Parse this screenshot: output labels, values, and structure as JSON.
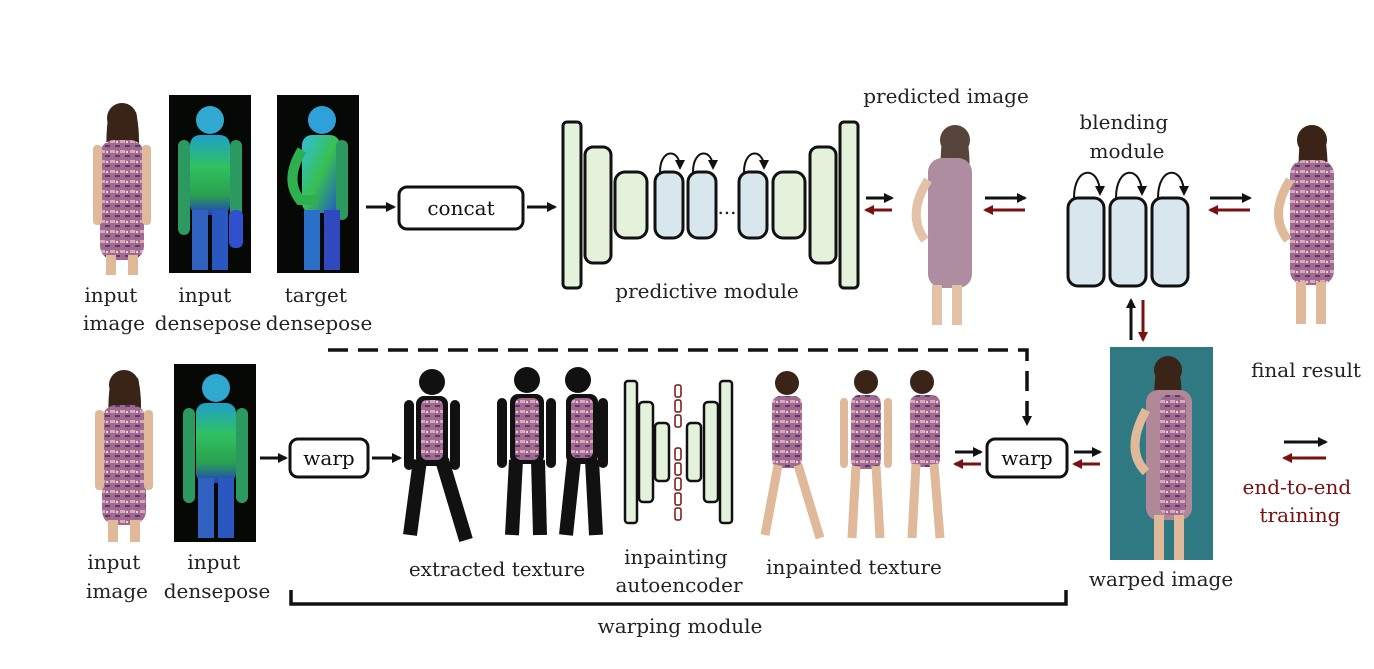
{
  "labels": {
    "input_image_top": [
      "input",
      "image"
    ],
    "input_densepose_top": [
      "input",
      "densepose"
    ],
    "target_densepose": [
      "target",
      "densepose"
    ],
    "concat": "concat",
    "predictive_module": "predictive module",
    "predicted_image": "predicted image",
    "blending_module": [
      "blending",
      "module"
    ],
    "final_result": "final result",
    "input_image_bottom": [
      "input",
      "image"
    ],
    "input_densepose_bottom": [
      "input",
      "densepose"
    ],
    "warp_left": "warp",
    "extracted_texture": "extracted texture",
    "inpainting_autoencoder": [
      "inpainting",
      "autoencoder"
    ],
    "inpainted_texture": "inpainted texture",
    "warp_right": "warp",
    "warped_image": "warped image",
    "warping_module": "warping module",
    "legend": [
      "end-to-end",
      "training"
    ],
    "dots": "..."
  },
  "colors": {
    "forward_arrow": "#111111",
    "backward_arrow": "#7a1010",
    "module_green": "#e4f2dc",
    "module_blue": "#d8e6ee",
    "densepose_bg": "#050805",
    "warped_bg": "#2f7a82",
    "dress_pattern": "#9a5a86"
  },
  "icons": [
    "person-photo",
    "densepose-map",
    "texture-figure",
    "predicted-person",
    "warped-person"
  ]
}
